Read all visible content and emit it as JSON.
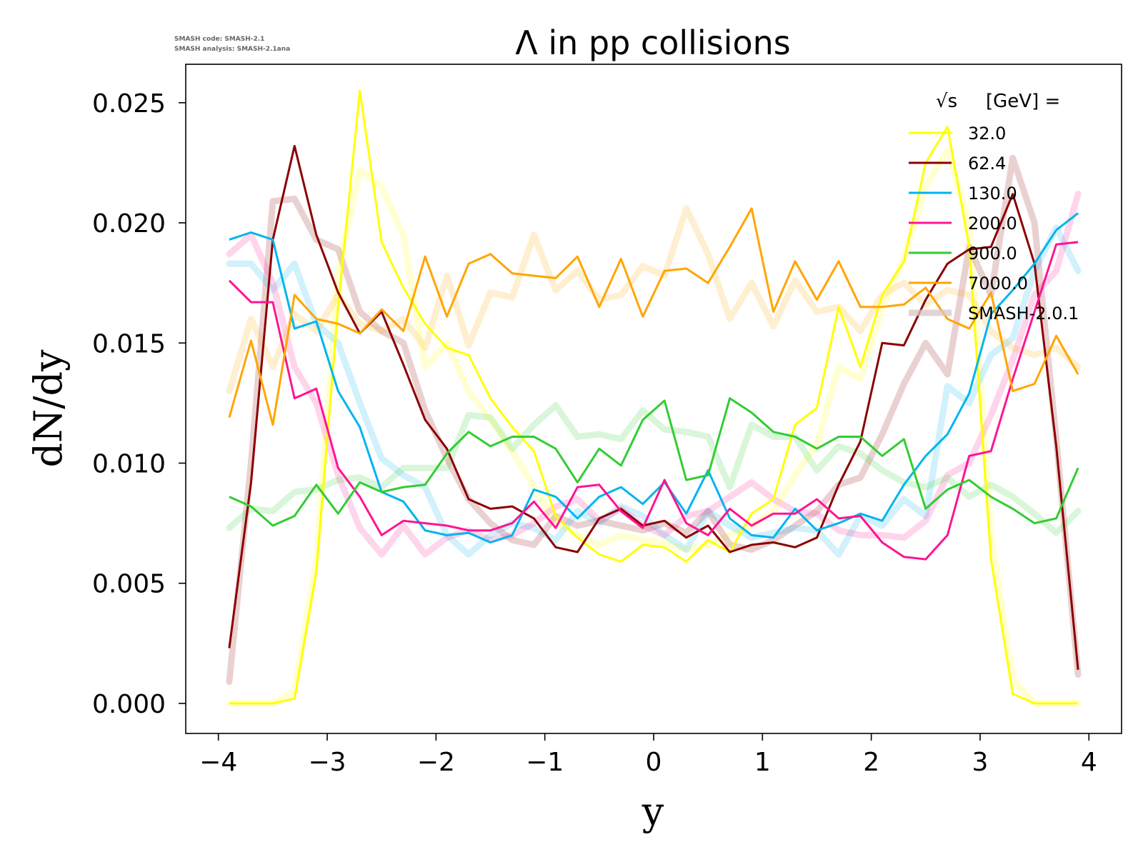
{
  "chart_data": {
    "type": "line",
    "title": "Λ in pp collisions",
    "xlabel": "y",
    "ylabel": "dN/dy",
    "xlim": [
      -4.3,
      4.3
    ],
    "ylim": [
      -0.00125,
      0.0266
    ],
    "xticks": [
      -4,
      -3,
      -2,
      -1,
      0,
      1,
      2,
      3,
      4
    ],
    "xtick_labels": [
      "−4",
      "−3",
      "−2",
      "−1",
      "0",
      "1",
      "2",
      "3",
      "4"
    ],
    "yticks": [
      0.0,
      0.005,
      0.01,
      0.015,
      0.02,
      0.025
    ],
    "ytick_labels": [
      "0.000",
      "0.005",
      "0.010",
      "0.015",
      "0.020",
      "0.025"
    ],
    "annotation": [
      "SMASH code:      SMASH-2.1",
      "SMASH analysis: SMASH-2.1ana"
    ],
    "legend": {
      "location": "top-right",
      "title_sqrt": "√s",
      "title_unit": "[GeV] =",
      "entries": [
        "32.0",
        "62.4",
        "130.0",
        "200.0",
        "900.0",
        "7000.0",
        "SMASH-2.0.1"
      ],
      "reference_color": "#d9c4c4"
    },
    "x": [
      -3.9,
      -3.7,
      -3.5,
      -3.3,
      -3.1,
      -2.9,
      -2.7,
      -2.5,
      -2.3,
      -2.1,
      -1.9,
      -1.7,
      -1.5,
      -1.3,
      -1.1,
      -0.9,
      -0.7,
      -0.5,
      -0.3,
      -0.1,
      0.1,
      0.3,
      0.5,
      0.7,
      0.9,
      1.1,
      1.3,
      1.5,
      1.7,
      1.9,
      2.1,
      2.3,
      2.5,
      2.7,
      2.9,
      3.1,
      3.3,
      3.5,
      3.7,
      3.9
    ],
    "series": [
      {
        "name": "32.0",
        "color": "#ffff00",
        "values": [
          0.0,
          0.0,
          0.0,
          0.0002,
          0.0055,
          0.0165,
          0.0255,
          0.0192,
          0.0173,
          0.0158,
          0.0148,
          0.0145,
          0.0127,
          0.0115,
          0.0105,
          0.0078,
          0.0069,
          0.0062,
          0.0059,
          0.0066,
          0.0065,
          0.0059,
          0.0068,
          0.0063,
          0.0079,
          0.0085,
          0.0116,
          0.0123,
          0.0165,
          0.014,
          0.017,
          0.0184,
          0.0225,
          0.024,
          0.019,
          0.006,
          0.0004,
          0.0,
          0.0,
          0.0
        ],
        "reference": [
          0.0,
          0.0,
          0.0,
          0.0005,
          0.006,
          0.018,
          0.0222,
          0.0215,
          0.0195,
          0.014,
          0.015,
          0.013,
          0.0118,
          0.0105,
          0.009,
          0.0075,
          0.007,
          0.0066,
          0.007,
          0.0068,
          0.0067,
          0.0064,
          0.0066,
          0.007,
          0.0074,
          0.008,
          0.0095,
          0.0108,
          0.014,
          0.0135,
          0.0165,
          0.0185,
          0.0215,
          0.023,
          0.02,
          0.007,
          0.001,
          0.0,
          0.0,
          0.0
        ]
      },
      {
        "name": "62.4",
        "color": "#8b0000",
        "values": [
          0.0023,
          0.0092,
          0.0193,
          0.0232,
          0.0195,
          0.0171,
          0.0154,
          0.0163,
          0.0141,
          0.0118,
          0.0106,
          0.0085,
          0.0081,
          0.0082,
          0.0077,
          0.0065,
          0.0063,
          0.0077,
          0.0081,
          0.0074,
          0.0076,
          0.0069,
          0.0074,
          0.0063,
          0.0066,
          0.0067,
          0.0065,
          0.0069,
          0.0091,
          0.0109,
          0.015,
          0.0149,
          0.0168,
          0.0183,
          0.0189,
          0.019,
          0.0212,
          0.0183,
          0.0107,
          0.0014
        ],
        "reference": [
          0.0009,
          0.01,
          0.0209,
          0.021,
          0.0193,
          0.0189,
          0.0163,
          0.0155,
          0.015,
          0.0122,
          0.0102,
          0.0085,
          0.0075,
          0.0068,
          0.0066,
          0.0078,
          0.0074,
          0.0076,
          0.0074,
          0.0072,
          0.0075,
          0.0071,
          0.008,
          0.0066,
          0.0064,
          0.0068,
          0.0074,
          0.008,
          0.0091,
          0.0094,
          0.0112,
          0.0133,
          0.015,
          0.0137,
          0.019,
          0.017,
          0.0227,
          0.02,
          0.011,
          0.0012
        ]
      },
      {
        "name": "130.0",
        "color": "#00b4f0",
        "values": [
          0.0193,
          0.0196,
          0.0193,
          0.0156,
          0.0159,
          0.013,
          0.0115,
          0.0088,
          0.0084,
          0.0072,
          0.007,
          0.0071,
          0.0067,
          0.007,
          0.0089,
          0.0086,
          0.0077,
          0.0086,
          0.009,
          0.0083,
          0.0092,
          0.0079,
          0.0097,
          0.0077,
          0.007,
          0.0069,
          0.0081,
          0.0072,
          0.0075,
          0.0079,
          0.0076,
          0.0091,
          0.0103,
          0.0112,
          0.0129,
          0.0162,
          0.0172,
          0.0183,
          0.0197,
          0.0204
        ],
        "reference": [
          0.0183,
          0.0183,
          0.0172,
          0.0183,
          0.0158,
          0.015,
          0.0125,
          0.0102,
          0.0095,
          0.009,
          0.007,
          0.0062,
          0.007,
          0.0075,
          0.0073,
          0.0068,
          0.008,
          0.0075,
          0.0082,
          0.0078,
          0.007,
          0.0064,
          0.008,
          0.0074,
          0.0069,
          0.0071,
          0.0073,
          0.0072,
          0.0062,
          0.0078,
          0.0074,
          0.0085,
          0.0078,
          0.0132,
          0.0125,
          0.0145,
          0.0152,
          0.018,
          0.0198,
          0.018
        ]
      },
      {
        "name": "200.0",
        "color": "#ff1493",
        "values": [
          0.0176,
          0.0167,
          0.0167,
          0.0127,
          0.0131,
          0.0098,
          0.0086,
          0.007,
          0.0076,
          0.0075,
          0.0074,
          0.0072,
          0.0072,
          0.0075,
          0.0084,
          0.0073,
          0.009,
          0.0091,
          0.008,
          0.0073,
          0.0093,
          0.0075,
          0.007,
          0.0081,
          0.0074,
          0.0079,
          0.0079,
          0.0085,
          0.0077,
          0.0078,
          0.0067,
          0.0061,
          0.006,
          0.007,
          0.0103,
          0.0105,
          0.0135,
          0.0163,
          0.0191,
          0.0192
        ],
        "reference": [
          0.0187,
          0.0195,
          0.0175,
          0.014,
          0.0125,
          0.0095,
          0.0073,
          0.0062,
          0.0074,
          0.0062,
          0.0069,
          0.0072,
          0.0068,
          0.007,
          0.0075,
          0.0082,
          0.0085,
          0.0076,
          0.0081,
          0.0074,
          0.007,
          0.0078,
          0.008,
          0.0086,
          0.0092,
          0.0085,
          0.008,
          0.0079,
          0.0072,
          0.007,
          0.007,
          0.0069,
          0.0076,
          0.0095,
          0.01,
          0.012,
          0.0143,
          0.017,
          0.018,
          0.0212
        ]
      },
      {
        "name": "900.0",
        "color": "#32cd32",
        "values": [
          0.0086,
          0.0082,
          0.0074,
          0.0078,
          0.0091,
          0.0079,
          0.0092,
          0.0088,
          0.009,
          0.0091,
          0.0104,
          0.0113,
          0.0107,
          0.0111,
          0.0111,
          0.0106,
          0.0092,
          0.0106,
          0.0099,
          0.0118,
          0.0126,
          0.0093,
          0.0095,
          0.0127,
          0.0121,
          0.0113,
          0.0111,
          0.0106,
          0.0111,
          0.0111,
          0.0103,
          0.011,
          0.0081,
          0.0089,
          0.0093,
          0.0086,
          0.0081,
          0.0075,
          0.0077,
          0.0098
        ],
        "reference": [
          0.0073,
          0.0081,
          0.008,
          0.0088,
          0.0089,
          0.0093,
          0.0094,
          0.009,
          0.0098,
          0.0098,
          0.0098,
          0.012,
          0.0119,
          0.0106,
          0.0116,
          0.0124,
          0.0111,
          0.0112,
          0.011,
          0.0122,
          0.0114,
          0.0113,
          0.0111,
          0.009,
          0.0116,
          0.0111,
          0.0111,
          0.0097,
          0.0107,
          0.0104,
          0.0097,
          0.0092,
          0.009,
          0.0094,
          0.0086,
          0.0091,
          0.0086,
          0.0079,
          0.0071,
          0.008
        ]
      },
      {
        "name": "7000.0",
        "color": "#ffa500",
        "values": [
          0.0119,
          0.0151,
          0.0116,
          0.017,
          0.016,
          0.0158,
          0.0154,
          0.0164,
          0.0155,
          0.0186,
          0.0161,
          0.0183,
          0.0187,
          0.0179,
          0.0178,
          0.0177,
          0.0186,
          0.0165,
          0.0185,
          0.0161,
          0.018,
          0.0181,
          0.0175,
          0.019,
          0.0206,
          0.0163,
          0.0184,
          0.0168,
          0.0184,
          0.0165,
          0.0165,
          0.0166,
          0.0173,
          0.016,
          0.0156,
          0.0171,
          0.013,
          0.0133,
          0.0153,
          0.0137
        ],
        "reference": [
          0.013,
          0.016,
          0.014,
          0.0162,
          0.0155,
          0.017,
          0.0158,
          0.0155,
          0.016,
          0.0148,
          0.0178,
          0.0149,
          0.0171,
          0.0169,
          0.0195,
          0.0172,
          0.018,
          0.0168,
          0.017,
          0.0182,
          0.0178,
          0.0206,
          0.0187,
          0.016,
          0.0175,
          0.0157,
          0.0176,
          0.0163,
          0.0165,
          0.0155,
          0.017,
          0.0175,
          0.0166,
          0.0172,
          0.017,
          0.0155,
          0.0148,
          0.0145,
          0.0148,
          0.014
        ]
      }
    ]
  }
}
